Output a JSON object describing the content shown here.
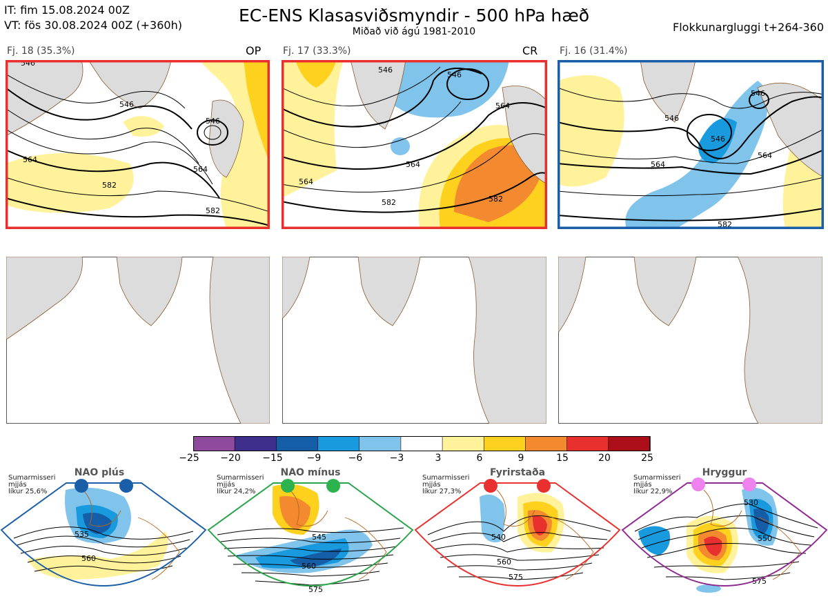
{
  "header": {
    "it_line": "IT: fim 15.08.2024 00Z",
    "vt_line": "VT: fös 30.08.2024 00Z  (+360h)",
    "title": "EC-ENS Klasasviðsmyndir - 500 hPa hæð",
    "subtitle": "Miðað við ágú 1981-2010",
    "window": "Flokkunargluggi t+264-360"
  },
  "clusters": [
    {
      "label": "Fj. 18 (35.3%)",
      "tag": "OP",
      "frame_color": "#e8312f",
      "contour_labels": [
        "546",
        "546",
        "564",
        "582",
        "582",
        "564",
        "546"
      ]
    },
    {
      "label": "Fj. 17 (33.3%)",
      "tag": "CR",
      "frame_color": "#e8312f",
      "contour_labels": [
        "564",
        "546",
        "564",
        "564",
        "582",
        "582",
        "546"
      ]
    },
    {
      "label": "Fj. 16 (31.4%)",
      "tag": "",
      "frame_color": "#1a5ea8",
      "contour_labels": [
        "546",
        "546",
        "564",
        "564",
        "546",
        "582"
      ]
    }
  ],
  "colorbar": {
    "ticks": [
      "−25",
      "−20",
      "−15",
      "−9",
      "−6",
      "−3",
      "3",
      "6",
      "9",
      "15",
      "20",
      "25"
    ],
    "colors": [
      "#8e4a9c",
      "#3f2f8c",
      "#155ea7",
      "#1a9ade",
      "#80c4ec",
      "#ffffff",
      "#fff29a",
      "#fed11f",
      "#f48a30",
      "#e8312f",
      "#ad0f1a"
    ]
  },
  "regimes": [
    {
      "name": "NAO plús",
      "note_lines": [
        "Sumarmisseri",
        "mjjás",
        "líkur 25,6%"
      ],
      "color": "#1a5ea8",
      "dot_color": "#1a5ea8",
      "labels": [
        "535",
        "560"
      ]
    },
    {
      "name": "NAO mínus",
      "note_lines": [
        "Sumarmisseri",
        "mjjás",
        "líkur 24,2%"
      ],
      "color": "#2aa34a",
      "dot_color": "#2db34e",
      "labels": [
        "545",
        "560",
        "575"
      ]
    },
    {
      "name": "Fyrirstaða",
      "note_lines": [
        "Sumarmisseri",
        "mjjás",
        "líkur 27,3%"
      ],
      "color": "#e8312f",
      "dot_color": "#e8312f",
      "labels": [
        "540",
        "560",
        "575"
      ]
    },
    {
      "name": "Hryggur",
      "note_lines": [
        "Sumarmisseri",
        "mjjás",
        "líkur 22,9%"
      ],
      "color": "#8e2a90",
      "dot_color": "#ee82ee",
      "labels": [
        "530",
        "550",
        "575"
      ]
    }
  ]
}
